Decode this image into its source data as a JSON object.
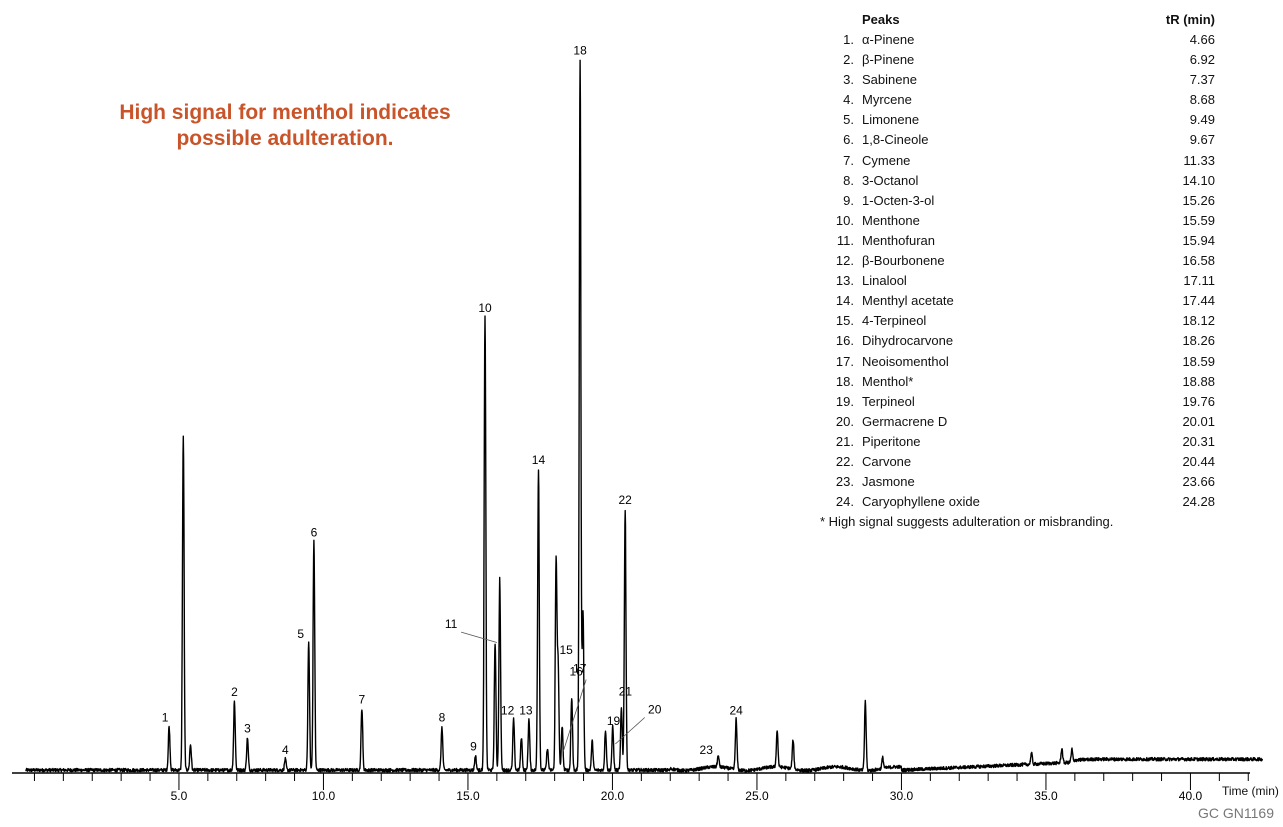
{
  "annotation": [
    "High signal for menthol indicates",
    "possible adulteration."
  ],
  "legend": {
    "header_name": "Peaks",
    "header_rt": "tR (min)",
    "footnote": "* High signal suggests adulteration or misbranding."
  },
  "code": "GC GN1169",
  "colors": {
    "trace": "#000000",
    "annotation": "#c9542a"
  },
  "chart_data": {
    "type": "line",
    "title": "",
    "xlabel": "Time (min)",
    "ylabel": "",
    "xlim": [
      0,
      42.5
    ],
    "ylim": [
      0,
      100
    ],
    "grid": false,
    "x_ticks": [
      5.0,
      10.0,
      15.0,
      20.0,
      25.0,
      30.0,
      35.0,
      40.0
    ],
    "x_tick_labels": [
      "5.0",
      "10.0",
      "15.0",
      "20.0",
      "25.0",
      "30.0",
      "35.0",
      "40.0"
    ],
    "peaks": [
      {
        "label": "1",
        "name": "α-Pinene",
        "rt": "4.66",
        "x": 4.66,
        "y": 6
      },
      {
        "label": "2",
        "name": "β-Pinene",
        "rt": "6.92",
        "x": 6.92,
        "y": 9.5
      },
      {
        "label": "3",
        "name": "Sabinene",
        "rt": "7.37",
        "x": 7.37,
        "y": 4.5
      },
      {
        "label": "4",
        "name": "Myrcene",
        "rt": "8.68",
        "x": 8.68,
        "y": 1.5
      },
      {
        "label": "5",
        "name": "Limonene",
        "rt": "9.49",
        "x": 9.49,
        "y": 17.5
      },
      {
        "label": "6",
        "name": "1,8-Cineole",
        "rt": "9.67",
        "x": 9.67,
        "y": 31.5
      },
      {
        "label": "7",
        "name": "Cymene",
        "rt": "11.33",
        "x": 11.33,
        "y": 8.5
      },
      {
        "label": "8",
        "name": "3-Octanol",
        "rt": "14.10",
        "x": 14.1,
        "y": 6
      },
      {
        "label": "9",
        "name": "1-Octen-3-ol",
        "rt": "15.26",
        "x": 15.26,
        "y": 2
      },
      {
        "label": "10",
        "name": "Menthone",
        "rt": "15.59",
        "x": 15.59,
        "y": 62.5
      },
      {
        "label": "11",
        "name": "Menthofuran",
        "rt": "15.94",
        "x": 15.94,
        "y": 17.5
      },
      {
        "label": "12",
        "name": "β-Bourbonene",
        "rt": "16.58",
        "x": 16.58,
        "y": 7
      },
      {
        "label": "13",
        "name": "Linalool",
        "rt": "17.11",
        "x": 17.11,
        "y": 7
      },
      {
        "label": "14",
        "name": "Menthyl acetate",
        "rt": "17.44",
        "x": 17.44,
        "y": 41.5
      },
      {
        "label": "15",
        "name": "4-Terpineol",
        "rt": "18.12",
        "x": 18.12,
        "y": 14.5
      },
      {
        "label": "16",
        "name": "Dihydrocarvone",
        "rt": "18.26",
        "x": 18.26,
        "y": 6
      },
      {
        "label": "17",
        "name": "Neoisomenthol",
        "rt": "18.59",
        "x": 18.59,
        "y": 10
      },
      {
        "label": "18",
        "name": "Menthol*",
        "rt": "18.88",
        "x": 18.88,
        "y": 98
      },
      {
        "label": "19",
        "name": "Terpineol",
        "rt": "19.76",
        "x": 19.76,
        "y": 5.5
      },
      {
        "label": "20",
        "name": "Germacrene D",
        "rt": "20.01",
        "x": 20.01,
        "y": 6
      },
      {
        "label": "21",
        "name": "Piperitone",
        "rt": "20.31",
        "x": 20.31,
        "y": 8.5
      },
      {
        "label": "22",
        "name": "Carvone",
        "rt": "20.44",
        "x": 20.44,
        "y": 36
      },
      {
        "label": "23",
        "name": "Jasmone",
        "rt": "23.66",
        "x": 23.66,
        "y": 1.5
      },
      {
        "label": "24",
        "name": "Caryophyllene oxide",
        "rt": "24.28",
        "x": 24.28,
        "y": 7
      }
    ],
    "unlabeled_peaks": [
      {
        "x": 5.15,
        "y": 46
      },
      {
        "x": 5.4,
        "y": 3.5
      },
      {
        "x": 16.1,
        "y": 26.5
      },
      {
        "x": 16.85,
        "y": 4.5
      },
      {
        "x": 17.75,
        "y": 3
      },
      {
        "x": 18.05,
        "y": 29
      },
      {
        "x": 18.98,
        "y": 22
      },
      {
        "x": 19.3,
        "y": 4
      },
      {
        "x": 25.7,
        "y": 5
      },
      {
        "x": 26.25,
        "y": 4
      },
      {
        "x": 28.75,
        "y": 9.5
      },
      {
        "x": 29.35,
        "y": 1.5
      },
      {
        "x": 34.5,
        "y": 1.5
      },
      {
        "x": 35.55,
        "y": 2
      },
      {
        "x": 35.9,
        "y": 1.8
      }
    ]
  }
}
